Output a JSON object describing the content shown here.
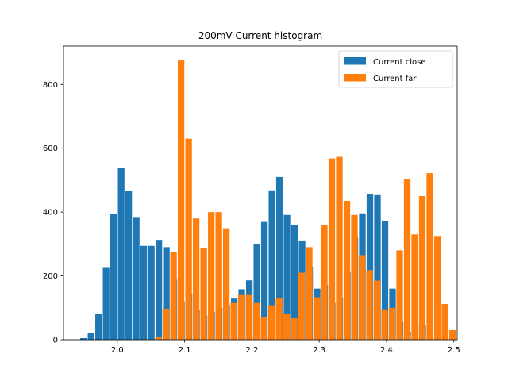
{
  "chart_data": {
    "type": "bar",
    "title": "200mV Current histogram",
    "xlabel": "",
    "ylabel": "",
    "xlim": [
      1.92,
      2.505
    ],
    "ylim": [
      0,
      920
    ],
    "xticks": [
      2.0,
      2.1,
      2.2,
      2.3,
      2.4,
      2.5
    ],
    "xtick_labels": [
      "2.0",
      "2.1",
      "2.2",
      "2.3",
      "2.4",
      "2.5"
    ],
    "yticks": [
      0,
      200,
      400,
      600,
      800
    ],
    "ytick_labels": [
      "0",
      "200",
      "400",
      "600",
      "800"
    ],
    "grid": false,
    "legend_position": "top-right",
    "bin_width": 0.0212,
    "x": [
      1.955,
      1.9662,
      1.9774,
      1.9886,
      1.9998,
      2.011,
      2.0222,
      2.0334,
      2.0446,
      2.0558,
      2.067,
      2.0782,
      2.0894,
      2.1006,
      2.1118,
      2.123,
      2.1342,
      2.1454,
      2.1566,
      2.1678,
      2.179,
      2.1902,
      2.2014,
      2.2126,
      2.2238,
      2.235,
      2.2462,
      2.2574,
      2.2686,
      2.2798,
      2.291,
      2.3022,
      2.3134,
      2.3246,
      2.3358,
      2.347,
      2.3582,
      2.3694,
      2.3806,
      2.3918,
      2.403,
      2.4142,
      2.4254,
      2.4366,
      2.4478,
      2.459,
      2.4702
    ],
    "series": [
      {
        "name": "Current close",
        "color": "#1f77b4",
        "values": [
          5,
          20,
          80,
          225,
          393,
          537,
          465,
          382,
          294,
          294,
          313,
          290,
          188,
          120,
          145,
          93,
          76,
          87,
          100,
          109,
          129,
          158,
          186,
          300,
          369,
          468,
          510,
          391,
          360,
          311,
          228,
          160,
          171,
          115,
          130,
          212,
          323,
          396,
          455,
          453,
          373,
          160,
          55,
          25,
          45,
          45,
          2
        ]
      },
      {
        "name": "Current far",
        "color": "#ff7f0e",
        "values": [
          0,
          0,
          0,
          0,
          0,
          0,
          0,
          0,
          0,
          10,
          97,
          275,
          875,
          630,
          380,
          287,
          400,
          400,
          349,
          115,
          140,
          140,
          115,
          72,
          108,
          131,
          80,
          69,
          210,
          290,
          133,
          360,
          568,
          573,
          435,
          391,
          265,
          218,
          185,
          95,
          100,
          280,
          503,
          330,
          450,
          522,
          325
        ]
      }
    ],
    "extra_far_bar": {
      "x": 2.4814,
      "value": 112
    },
    "extra_far_bar2": {
      "x": 2.4926,
      "value": 30
    }
  }
}
